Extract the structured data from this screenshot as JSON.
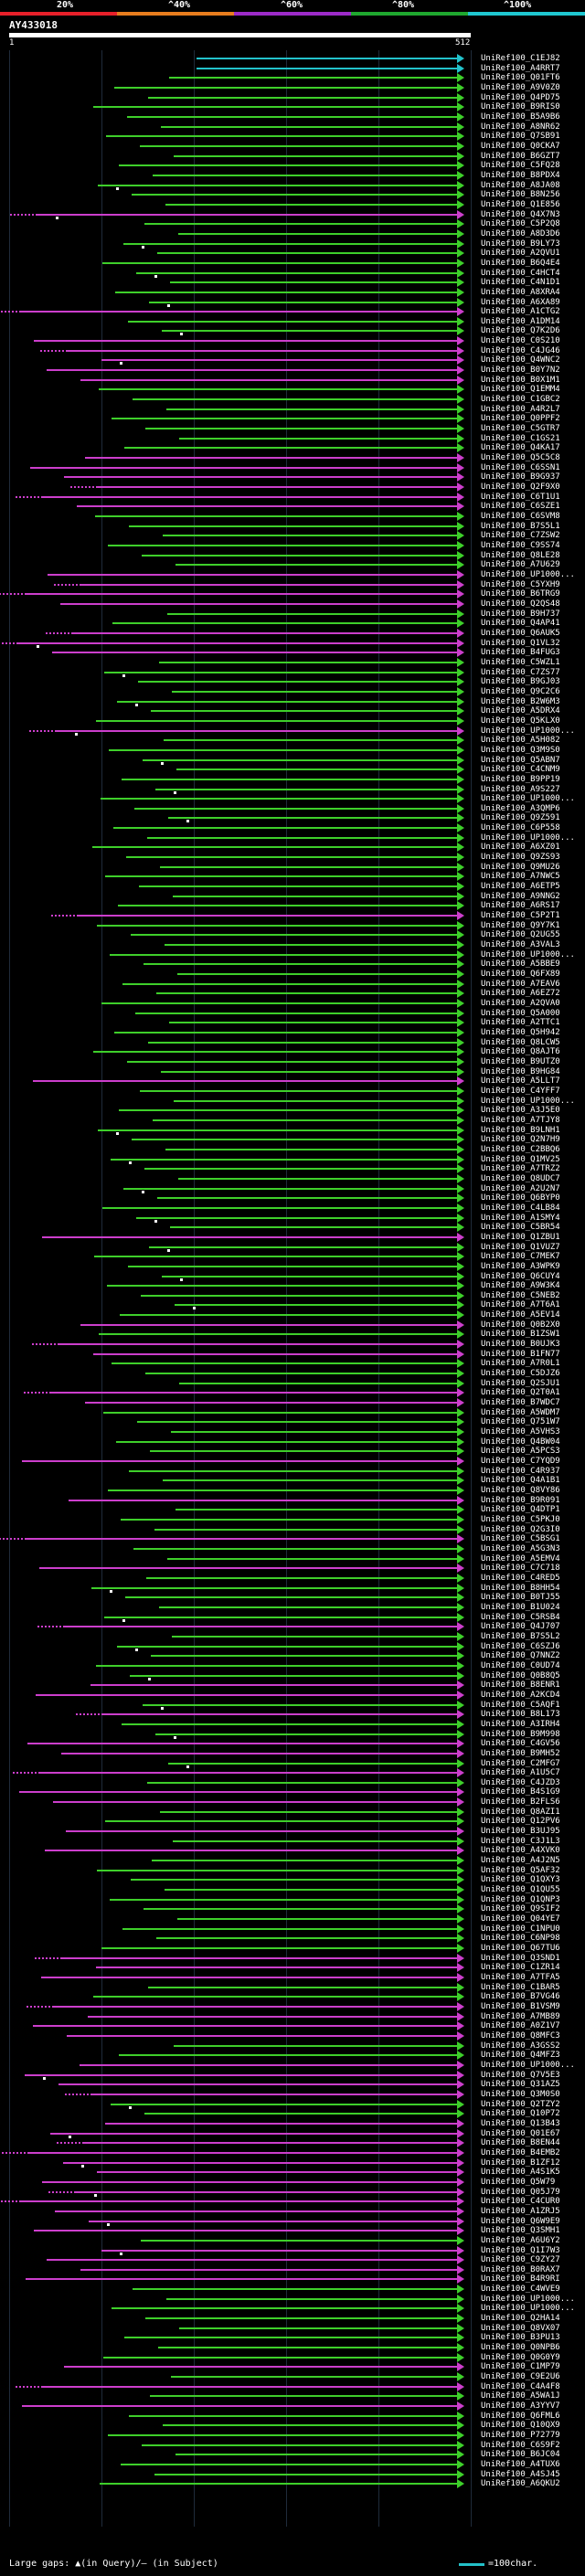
{
  "scale": {
    "labels": [
      "20%",
      "^40%",
      "^60%",
      "^80%",
      "^100%"
    ],
    "colors": [
      "#e8202a",
      "#e87d1e",
      "#9c2bc8",
      "#1fa82f",
      "#1fc7d1"
    ]
  },
  "query": {
    "title": "AY433018",
    "start": "1",
    "end": "512"
  },
  "colors": {
    "cyan": "#22c2cb",
    "green": "#3ecf2a",
    "magenta": "#cc3ecc",
    "white": "#ffffff"
  },
  "hits": [
    {
      "acc": "UniRef100_C1EJ82",
      "c": "cyan"
    },
    {
      "acc": "UniRef100_A4RRT7",
      "c": "cyan"
    },
    {
      "acc": "UniRef100_Q01FT6",
      "c": "green"
    },
    {
      "acc": "UniRef100_A9V0Z0",
      "c": "green"
    },
    {
      "acc": "UniRef100_Q4PD75",
      "c": "green"
    },
    {
      "acc": "UniRef100_B9RIS0",
      "c": "green"
    },
    {
      "acc": "UniRef100_B5A9B6",
      "c": "green"
    },
    {
      "acc": "UniRef100_A8NR62",
      "c": "green"
    },
    {
      "acc": "UniRef100_Q7SB91",
      "c": "green"
    },
    {
      "acc": "UniRef100_Q0CKA7",
      "c": "green"
    },
    {
      "acc": "UniRef100_B6GZT7",
      "c": "green"
    },
    {
      "acc": "UniRef100_C5FQ28",
      "c": "green"
    },
    {
      "acc": "UniRef100_B8PDX4",
      "c": "green"
    },
    {
      "acc": "UniRef100_A8JA08",
      "c": "green"
    },
    {
      "acc": "UniRef100_B8N256",
      "c": "green"
    },
    {
      "acc": "UniRef100_Q1E856",
      "c": "green"
    },
    {
      "acc": "UniRef100_Q4X7N3",
      "c": "magenta"
    },
    {
      "acc": "UniRef100_C5P2Q8",
      "c": "green"
    },
    {
      "acc": "UniRef100_A8D3D6",
      "c": "green"
    },
    {
      "acc": "UniRef100_B9LY73",
      "c": "green"
    },
    {
      "acc": "UniRef100_A2QVU1",
      "c": "green"
    },
    {
      "acc": "UniRef100_B6Q4E4",
      "c": "green"
    },
    {
      "acc": "UniRef100_C4HCT4",
      "c": "green"
    },
    {
      "acc": "UniRef100_C4N1D1",
      "c": "green"
    },
    {
      "acc": "UniRef100_A8XRA4",
      "c": "green"
    },
    {
      "acc": "UniRef100_A6XA89",
      "c": "green"
    },
    {
      "acc": "UniRef100_A1CTG2",
      "c": "magenta"
    },
    {
      "acc": "UniRef100_A1DM14",
      "c": "green"
    },
    {
      "acc": "UniRef100_Q7K2D6",
      "c": "green"
    },
    {
      "acc": "UniRef100_C0S210",
      "c": "magenta"
    },
    {
      "acc": "UniRef100_C4JG46",
      "c": "magenta"
    },
    {
      "acc": "UniRef100_Q4WNC2",
      "c": "magenta"
    },
    {
      "acc": "UniRef100_B0Y7N2",
      "c": "magenta"
    },
    {
      "acc": "UniRef100_B0X1M1",
      "c": "magenta"
    },
    {
      "acc": "UniRef100_Q1EMM4",
      "c": "green"
    },
    {
      "acc": "UniRef100_C1GBC2",
      "c": "green"
    },
    {
      "acc": "UniRef100_A4R2L7",
      "c": "green"
    },
    {
      "acc": "UniRef100_Q0PPF2",
      "c": "green"
    },
    {
      "acc": "UniRef100_C5GTR7",
      "c": "green"
    },
    {
      "acc": "UniRef100_C1GS21",
      "c": "green"
    },
    {
      "acc": "UniRef100_Q4KA17",
      "c": "green"
    },
    {
      "acc": "UniRef100_Q5C5C8",
      "c": "magenta"
    },
    {
      "acc": "UniRef100_C6SSN1",
      "c": "magenta"
    },
    {
      "acc": "UniRef100_B9G937",
      "c": "magenta"
    },
    {
      "acc": "UniRef100_Q2F9X0",
      "c": "magenta"
    },
    {
      "acc": "UniRef100_C6T1U1",
      "c": "magenta"
    },
    {
      "acc": "UniRef100_C6SZE1",
      "c": "magenta"
    },
    {
      "acc": "UniRef100_C6SVM8",
      "c": "green"
    },
    {
      "acc": "UniRef100_B7S5L1",
      "c": "green"
    },
    {
      "acc": "UniRef100_C7ZSW2",
      "c": "green"
    },
    {
      "acc": "UniRef100_C9SS74",
      "c": "green"
    },
    {
      "acc": "UniRef100_Q8LE28",
      "c": "green"
    },
    {
      "acc": "UniRef100_A7U629",
      "c": "green"
    },
    {
      "acc": "UniRef100_UP1000...",
      "c": "magenta"
    },
    {
      "acc": "UniRef100_C5YXH9",
      "c": "magenta"
    },
    {
      "acc": "UniRef100_B6TRG9",
      "c": "magenta"
    },
    {
      "acc": "UniRef100_Q2QS48",
      "c": "magenta"
    },
    {
      "acc": "UniRef100_B9H737",
      "c": "green"
    },
    {
      "acc": "UniRef100_Q4AP41",
      "c": "green"
    },
    {
      "acc": "UniRef100_Q6AUK5",
      "c": "magenta"
    },
    {
      "acc": "UniRef100_Q1VL32",
      "c": "magenta"
    },
    {
      "acc": "UniRef100_B4FUG3",
      "c": "magenta"
    },
    {
      "acc": "UniRef100_C5WZL1",
      "c": "green"
    },
    {
      "acc": "UniRef100_C7ZS77",
      "c": "green"
    },
    {
      "acc": "UniRef100_B9GJ03",
      "c": "green"
    },
    {
      "acc": "UniRef100_Q9C2C6",
      "c": "green"
    },
    {
      "acc": "UniRef100_B2W6M3",
      "c": "green"
    },
    {
      "acc": "UniRef100_A5DRX4",
      "c": "green"
    },
    {
      "acc": "UniRef100_Q5KLX0",
      "c": "green"
    },
    {
      "acc": "UniRef100_UP1000...",
      "c": "magenta"
    },
    {
      "acc": "UniRef100_A5H082",
      "c": "green"
    },
    {
      "acc": "UniRef100_Q3M9S0",
      "c": "green"
    },
    {
      "acc": "UniRef100_Q5ABN7",
      "c": "green"
    },
    {
      "acc": "UniRef100_C4CNM9",
      "c": "green"
    },
    {
      "acc": "UniRef100_B9PP19",
      "c": "green"
    },
    {
      "acc": "UniRef100_A9S227",
      "c": "green"
    },
    {
      "acc": "UniRef100_UP1000...",
      "c": "green"
    },
    {
      "acc": "UniRef100_A3QMP6",
      "c": "green"
    },
    {
      "acc": "UniRef100_Q9Z591",
      "c": "green"
    },
    {
      "acc": "UniRef100_C6P558",
      "c": "green"
    },
    {
      "acc": "UniRef100_UP1000...",
      "c": "green"
    },
    {
      "acc": "UniRef100_A6XZ01",
      "c": "green"
    },
    {
      "acc": "UniRef100_Q9ZS93",
      "c": "green"
    },
    {
      "acc": "UniRef100_Q9MU26",
      "c": "green"
    },
    {
      "acc": "UniRef100_A7NWC5",
      "c": "green"
    },
    {
      "acc": "UniRef100_A6ETP5",
      "c": "green"
    },
    {
      "acc": "UniRef100_A9NNG2",
      "c": "green"
    },
    {
      "acc": "UniRef100_A6RS17",
      "c": "green"
    },
    {
      "acc": "UniRef100_C5P2T1",
      "c": "magenta"
    },
    {
      "acc": "UniRef100_Q9Y7K1",
      "c": "green"
    },
    {
      "acc": "UniRef100_Q2UG55",
      "c": "green"
    },
    {
      "acc": "UniRef100_A3VAL3",
      "c": "green"
    },
    {
      "acc": "UniRef100_UP1000...",
      "c": "green"
    },
    {
      "acc": "UniRef100_A5BBE9",
      "c": "green"
    },
    {
      "acc": "UniRef100_Q6FX89",
      "c": "green"
    },
    {
      "acc": "UniRef100_A7EAV6",
      "c": "green"
    },
    {
      "acc": "UniRef100_A6EZ72",
      "c": "green"
    },
    {
      "acc": "UniRef100_A2QVA0",
      "c": "green"
    },
    {
      "acc": "UniRef100_Q5A000",
      "c": "green"
    },
    {
      "acc": "UniRef100_A2TTC1",
      "c": "green"
    },
    {
      "acc": "UniRef100_Q5H942",
      "c": "green"
    },
    {
      "acc": "UniRef100_Q8LCW5",
      "c": "green"
    },
    {
      "acc": "UniRef100_Q8AJT6",
      "c": "green"
    },
    {
      "acc": "UniRef100_B9UTZ0",
      "c": "green"
    },
    {
      "acc": "UniRef100_B9HG84",
      "c": "green"
    },
    {
      "acc": "UniRef100_A5LLT7",
      "c": "magenta"
    },
    {
      "acc": "UniRef100_C4YFF7",
      "c": "green"
    },
    {
      "acc": "UniRef100_UP1000...",
      "c": "green"
    },
    {
      "acc": "UniRef100_A3J5E0",
      "c": "green"
    },
    {
      "acc": "UniRef100_A7TJY8",
      "c": "green"
    },
    {
      "acc": "UniRef100_B9LNH1",
      "c": "green"
    },
    {
      "acc": "UniRef100_Q2N7H9",
      "c": "green"
    },
    {
      "acc": "UniRef100_C2BBQ6",
      "c": "green"
    },
    {
      "acc": "UniRef100_Q1MV25",
      "c": "green"
    },
    {
      "acc": "UniRef100_A7TRZ2",
      "c": "green"
    },
    {
      "acc": "UniRef100_Q8UDC7",
      "c": "green"
    },
    {
      "acc": "UniRef100_A2U2N7",
      "c": "green"
    },
    {
      "acc": "UniRef100_Q6BYP0",
      "c": "green"
    },
    {
      "acc": "UniRef100_C4LB84",
      "c": "green"
    },
    {
      "acc": "UniRef100_A1SMY4",
      "c": "green"
    },
    {
      "acc": "UniRef100_C5BR54",
      "c": "green"
    },
    {
      "acc": "UniRef100_Q1ZBU1",
      "c": "magenta"
    },
    {
      "acc": "UniRef100_Q1VUZ7",
      "c": "green"
    },
    {
      "acc": "UniRef100_C7MEK7",
      "c": "green"
    },
    {
      "acc": "UniRef100_A3WPK9",
      "c": "green"
    },
    {
      "acc": "UniRef100_Q6CUY4",
      "c": "green"
    },
    {
      "acc": "UniRef100_A9W3K4",
      "c": "green"
    },
    {
      "acc": "UniRef100_C5NEB2",
      "c": "green"
    },
    {
      "acc": "UniRef100_A7T6A1",
      "c": "green"
    },
    {
      "acc": "UniRef100_A5EV14",
      "c": "green"
    },
    {
      "acc": "UniRef100_Q0B2X0",
      "c": "magenta"
    },
    {
      "acc": "UniRef100_B1ZSW1",
      "c": "green"
    },
    {
      "acc": "UniRef100_B0UJK3",
      "c": "magenta"
    },
    {
      "acc": "UniRef100_B1FN77",
      "c": "magenta"
    },
    {
      "acc": "UniRef100_A7R0L1",
      "c": "green"
    },
    {
      "acc": "UniRef100_C5DJZ6",
      "c": "green"
    },
    {
      "acc": "UniRef100_Q2SJU1",
      "c": "green"
    },
    {
      "acc": "UniRef100_Q2T0A1",
      "c": "magenta"
    },
    {
      "acc": "UniRef100_B7WDC7",
      "c": "magenta"
    },
    {
      "acc": "UniRef100_A5WDM7",
      "c": "green"
    },
    {
      "acc": "UniRef100_Q751W7",
      "c": "green"
    },
    {
      "acc": "UniRef100_A5VHS3",
      "c": "green"
    },
    {
      "acc": "UniRef100_Q4BW04",
      "c": "green"
    },
    {
      "acc": "UniRef100_A5PCS3",
      "c": "green"
    },
    {
      "acc": "UniRef100_C7YQD9",
      "c": "magenta"
    },
    {
      "acc": "UniRef100_C4R937",
      "c": "green"
    },
    {
      "acc": "UniRef100_Q4A1B1",
      "c": "green"
    },
    {
      "acc": "UniRef100_Q8VY86",
      "c": "green"
    },
    {
      "acc": "UniRef100_B9R091",
      "c": "magenta"
    },
    {
      "acc": "UniRef100_Q4DTP1",
      "c": "green"
    },
    {
      "acc": "UniRef100_C5PKJ0",
      "c": "green"
    },
    {
      "acc": "UniRef100_Q2G3I0",
      "c": "green"
    },
    {
      "acc": "UniRef100_C5BSG1",
      "c": "magenta"
    },
    {
      "acc": "UniRef100_A5G3N3",
      "c": "green"
    },
    {
      "acc": "UniRef100_A5EMV4",
      "c": "green"
    },
    {
      "acc": "UniRef100_C7C718",
      "c": "magenta"
    },
    {
      "acc": "UniRef100_C4RED5",
      "c": "green"
    },
    {
      "acc": "UniRef100_B8HH54",
      "c": "green"
    },
    {
      "acc": "UniRef100_B0TJ55",
      "c": "green"
    },
    {
      "acc": "UniRef100_B1U024",
      "c": "green"
    },
    {
      "acc": "UniRef100_C5RSB4",
      "c": "green"
    },
    {
      "acc": "UniRef100_Q4J707",
      "c": "magenta"
    },
    {
      "acc": "UniRef100_B7S5L2",
      "c": "green"
    },
    {
      "acc": "UniRef100_C6SZJ6",
      "c": "green"
    },
    {
      "acc": "UniRef100_Q7NNZ2",
      "c": "green"
    },
    {
      "acc": "UniRef100_C0UD74",
      "c": "green"
    },
    {
      "acc": "UniRef100_Q0B8Q5",
      "c": "green"
    },
    {
      "acc": "UniRef100_B8ENR1",
      "c": "magenta"
    },
    {
      "acc": "UniRef100_A2KCD4",
      "c": "magenta"
    },
    {
      "acc": "UniRef100_C5AQF1",
      "c": "green"
    },
    {
      "acc": "UniRef100_B8L173",
      "c": "magenta"
    },
    {
      "acc": "UniRef100_A3IRH4",
      "c": "green"
    },
    {
      "acc": "UniRef100_B9M998",
      "c": "green"
    },
    {
      "acc": "UniRef100_C4GV56",
      "c": "magenta"
    },
    {
      "acc": "UniRef100_B9MH52",
      "c": "magenta"
    },
    {
      "acc": "UniRef100_C2MFG7",
      "c": "green"
    },
    {
      "acc": "UniRef100_A1U5C7",
      "c": "magenta"
    },
    {
      "acc": "UniRef100_C4JZD3",
      "c": "green"
    },
    {
      "acc": "UniRef100_B4S1G9",
      "c": "magenta"
    },
    {
      "acc": "UniRef100_B2FLS6",
      "c": "magenta"
    },
    {
      "acc": "UniRef100_Q8AZI1",
      "c": "green"
    },
    {
      "acc": "UniRef100_Q12PV6",
      "c": "green"
    },
    {
      "acc": "UniRef100_B3UJ95",
      "c": "magenta"
    },
    {
      "acc": "UniRef100_C3J1L3",
      "c": "green"
    },
    {
      "acc": "UniRef100_A4XVK0",
      "c": "magenta"
    },
    {
      "acc": "UniRef100_A4J2N5",
      "c": "green"
    },
    {
      "acc": "UniRef100_Q5AF32",
      "c": "green"
    },
    {
      "acc": "UniRef100_Q1QXY3",
      "c": "green"
    },
    {
      "acc": "UniRef100_Q1QU55",
      "c": "green"
    },
    {
      "acc": "UniRef100_Q1QNP3",
      "c": "green"
    },
    {
      "acc": "UniRef100_Q9SIF2",
      "c": "green"
    },
    {
      "acc": "UniRef100_Q04YE7",
      "c": "green"
    },
    {
      "acc": "UniRef100_C1NPU0",
      "c": "green"
    },
    {
      "acc": "UniRef100_C6NP98",
      "c": "green"
    },
    {
      "acc": "UniRef100_Q67TU6",
      "c": "green"
    },
    {
      "acc": "UniRef100_Q3SND1",
      "c": "magenta"
    },
    {
      "acc": "UniRef100_C1ZR14",
      "c": "magenta"
    },
    {
      "acc": "UniRef100_A7TFA5",
      "c": "magenta"
    },
    {
      "acc": "UniRef100_C1BAR5",
      "c": "green"
    },
    {
      "acc": "UniRef100_B7VG46",
      "c": "green"
    },
    {
      "acc": "UniRef100_B1VSM9",
      "c": "magenta"
    },
    {
      "acc": "UniRef100_A7MB89",
      "c": "magenta"
    },
    {
      "acc": "UniRef100_A0Z1V7",
      "c": "magenta"
    },
    {
      "acc": "UniRef100_Q8MFC3",
      "c": "magenta"
    },
    {
      "acc": "UniRef100_A3GSS2",
      "c": "green"
    },
    {
      "acc": "UniRef100_Q4MFZ3",
      "c": "green"
    },
    {
      "acc": "UniRef100_UP1000...",
      "c": "magenta"
    },
    {
      "acc": "UniRef100_Q7V5E3",
      "c": "magenta"
    },
    {
      "acc": "UniRef100_Q31AZ5",
      "c": "magenta"
    },
    {
      "acc": "UniRef100_Q3M0S0",
      "c": "magenta"
    },
    {
      "acc": "UniRef100_Q2TZY2",
      "c": "green"
    },
    {
      "acc": "UniRef100_Q10P72",
      "c": "green"
    },
    {
      "acc": "UniRef100_Q13B43",
      "c": "magenta"
    },
    {
      "acc": "UniRef100_Q01E67",
      "c": "magenta"
    },
    {
      "acc": "UniRef100_B8EN44",
      "c": "magenta"
    },
    {
      "acc": "UniRef100_B4EMB2",
      "c": "magenta"
    },
    {
      "acc": "UniRef100_B1ZF12",
      "c": "magenta"
    },
    {
      "acc": "UniRef100_A4S1K5",
      "c": "magenta"
    },
    {
      "acc": "UniRef100_Q5W79",
      "c": "magenta"
    },
    {
      "acc": "UniRef100_Q05J79",
      "c": "magenta"
    },
    {
      "acc": "UniRef100_C4CUR0",
      "c": "magenta"
    },
    {
      "acc": "UniRef100_A1ZRJ5",
      "c": "magenta"
    },
    {
      "acc": "UniRef100_Q6W9E9",
      "c": "magenta"
    },
    {
      "acc": "UniRef100_Q3SMH1",
      "c": "magenta"
    },
    {
      "acc": "UniRef100_A6U6Y2",
      "c": "green"
    },
    {
      "acc": "UniRef100_Q1I7W3",
      "c": "magenta"
    },
    {
      "acc": "UniRef100_C9ZY27",
      "c": "magenta"
    },
    {
      "acc": "UniRef100_B0RAX7",
      "c": "magenta"
    },
    {
      "acc": "UniRef100_B4R9RI",
      "c": "magenta"
    },
    {
      "acc": "UniRef100_C4WVE9",
      "c": "green"
    },
    {
      "acc": "UniRef100_UP1000...",
      "c": "green"
    },
    {
      "acc": "UniRef100_UP1000...",
      "c": "green"
    },
    {
      "acc": "UniRef100_Q2HA14",
      "c": "green"
    },
    {
      "acc": "UniRef100_Q8VX07",
      "c": "green"
    },
    {
      "acc": "UniRef100_B3PU13",
      "c": "green"
    },
    {
      "acc": "UniRef100_Q0NPB6",
      "c": "green"
    },
    {
      "acc": "UniRef100_Q0G0Y9",
      "c": "green"
    },
    {
      "acc": "UniRef100_C1MP79",
      "c": "magenta"
    },
    {
      "acc": "UniRef100_C9E2U6",
      "c": "green"
    },
    {
      "acc": "UniRef100_C4A4F8",
      "c": "magenta"
    },
    {
      "acc": "UniRef100_A5WA1J",
      "c": "green"
    },
    {
      "acc": "UniRef100_A3YYV7",
      "c": "magenta"
    },
    {
      "acc": "UniRef100_Q6FML6",
      "c": "green"
    },
    {
      "acc": "UniRef100_Q10QX9",
      "c": "green"
    },
    {
      "acc": "UniRef100_P72779",
      "c": "green"
    },
    {
      "acc": "UniRef100_C6S9F2",
      "c": "green"
    },
    {
      "acc": "UniRef100_B6JC04",
      "c": "green"
    },
    {
      "acc": "UniRef100_A4TUX6",
      "c": "green"
    },
    {
      "acc": "UniRef100_A4SJ45",
      "c": "green"
    },
    {
      "acc": "UniRef100_A6QKU2",
      "c": "green"
    }
  ],
  "footer": {
    "text": "Large gaps: ▲(in Query)/– (in Subject)",
    "legend": "=100char."
  }
}
